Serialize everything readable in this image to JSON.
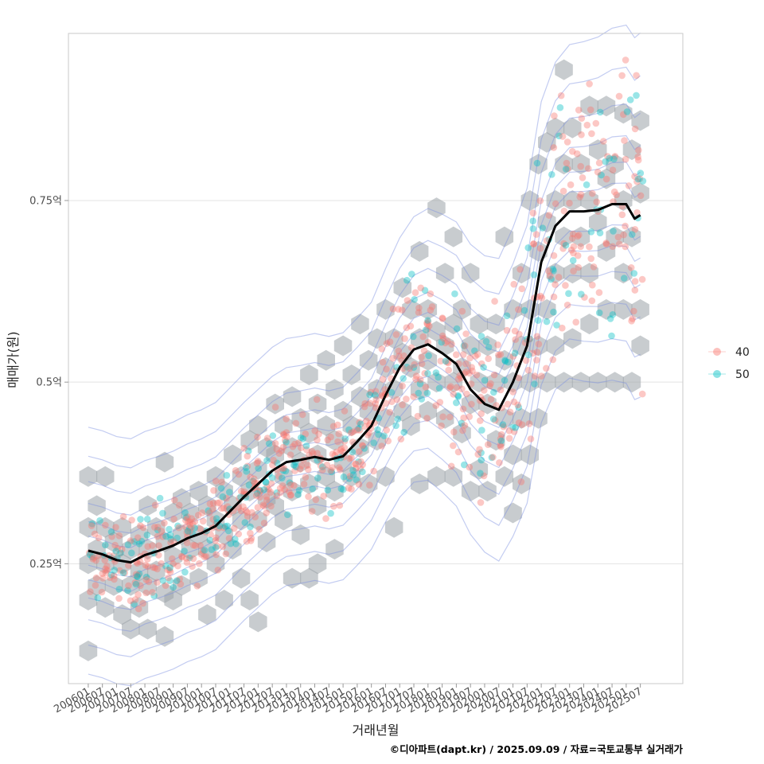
{
  "chart_data": {
    "type": "scatter",
    "xlabel": "거래년월",
    "ylabel": "매매가(원)",
    "credit": "©디아파트(dapt.kr) / 2025.09.09 / 자료=국토교통부 실거래가",
    "x_ticks": [
      "200601",
      "200607",
      "200701",
      "200707",
      "200801",
      "200807",
      "200901",
      "200907",
      "201001",
      "201007",
      "201101",
      "201107",
      "201201",
      "201207",
      "201301",
      "201307",
      "201401",
      "201407",
      "201501",
      "201507",
      "201601",
      "201607",
      "201701",
      "201707",
      "201801",
      "201807",
      "201901",
      "201907",
      "202001",
      "202007",
      "202101",
      "202107",
      "202201",
      "202207",
      "202301",
      "202307",
      "202401",
      "202407",
      "202501",
      "202507"
    ],
    "y_ticks": [
      {
        "value": 0.25,
        "label": "0.25억"
      },
      {
        "value": 0.5,
        "label": "0.5억"
      },
      {
        "value": 0.75,
        "label": "0.75억"
      }
    ],
    "xlim": [
      2005.3,
      2027.0
    ],
    "ylim": [
      0.085,
      0.98
    ],
    "grid": true,
    "legend_position": "right",
    "series": [
      {
        "name": "40",
        "color": "#f8766d"
      },
      {
        "name": "50",
        "color": "#00bfc4"
      }
    ],
    "trend": {
      "color": "#000000",
      "x": [
        2006.0,
        2006.5,
        2007.0,
        2007.5,
        2008.0,
        2008.5,
        2009.0,
        2009.5,
        2010.0,
        2010.5,
        2011.0,
        2011.5,
        2012.0,
        2012.5,
        2013.0,
        2013.5,
        2014.0,
        2014.5,
        2015.0,
        2015.5,
        2016.0,
        2016.5,
        2017.0,
        2017.5,
        2018.0,
        2018.5,
        2019.0,
        2019.5,
        2020.0,
        2020.5,
        2021.0,
        2021.5,
        2022.0,
        2022.5,
        2023.0,
        2023.5,
        2024.0,
        2024.5,
        2025.0,
        2025.3,
        2025.5
      ],
      "y": [
        0.268,
        0.263,
        0.255,
        0.252,
        0.262,
        0.268,
        0.275,
        0.285,
        0.292,
        0.302,
        0.322,
        0.342,
        0.36,
        0.378,
        0.39,
        0.393,
        0.397,
        0.393,
        0.398,
        0.418,
        0.44,
        0.482,
        0.52,
        0.545,
        0.552,
        0.54,
        0.525,
        0.49,
        0.47,
        0.462,
        0.5,
        0.55,
        0.665,
        0.715,
        0.735,
        0.735,
        0.737,
        0.745,
        0.745,
        0.725,
        0.73
      ]
    },
    "hex_centers": [
      [
        2006.0,
        0.37
      ],
      [
        2006.0,
        0.3
      ],
      [
        2006.0,
        0.25
      ],
      [
        2006.0,
        0.2
      ],
      [
        2006.0,
        0.13
      ],
      [
        2006.3,
        0.33
      ],
      [
        2006.3,
        0.27
      ],
      [
        2006.3,
        0.22
      ],
      [
        2006.6,
        0.37
      ],
      [
        2006.6,
        0.3
      ],
      [
        2006.6,
        0.25
      ],
      [
        2006.6,
        0.19
      ],
      [
        2006.9,
        0.28
      ],
      [
        2006.9,
        0.22
      ],
      [
        2007.2,
        0.3
      ],
      [
        2007.2,
        0.25
      ],
      [
        2007.2,
        0.18
      ],
      [
        2007.5,
        0.27
      ],
      [
        2007.5,
        0.22
      ],
      [
        2007.5,
        0.16
      ],
      [
        2007.8,
        0.29
      ],
      [
        2007.8,
        0.24
      ],
      [
        2007.8,
        0.19
      ],
      [
        2008.1,
        0.33
      ],
      [
        2008.1,
        0.27
      ],
      [
        2008.1,
        0.22
      ],
      [
        2008.1,
        0.16
      ],
      [
        2008.4,
        0.3
      ],
      [
        2008.4,
        0.24
      ],
      [
        2008.7,
        0.39
      ],
      [
        2008.7,
        0.28
      ],
      [
        2008.7,
        0.21
      ],
      [
        2008.7,
        0.15
      ],
      [
        2009.0,
        0.32
      ],
      [
        2009.0,
        0.26
      ],
      [
        2009.0,
        0.2
      ],
      [
        2009.3,
        0.34
      ],
      [
        2009.3,
        0.29
      ],
      [
        2009.3,
        0.22
      ],
      [
        2009.6,
        0.32
      ],
      [
        2009.6,
        0.27
      ],
      [
        2009.9,
        0.35
      ],
      [
        2009.9,
        0.29
      ],
      [
        2009.9,
        0.23
      ],
      [
        2010.2,
        0.33
      ],
      [
        2010.2,
        0.27
      ],
      [
        2010.2,
        0.18
      ],
      [
        2010.5,
        0.37
      ],
      [
        2010.5,
        0.31
      ],
      [
        2010.5,
        0.25
      ],
      [
        2010.8,
        0.35
      ],
      [
        2010.8,
        0.29
      ],
      [
        2010.8,
        0.2
      ],
      [
        2011.1,
        0.4
      ],
      [
        2011.1,
        0.33
      ],
      [
        2011.1,
        0.27
      ],
      [
        2011.4,
        0.37
      ],
      [
        2011.4,
        0.31
      ],
      [
        2011.4,
        0.23
      ],
      [
        2011.7,
        0.42
      ],
      [
        2011.7,
        0.35
      ],
      [
        2011.7,
        0.2
      ],
      [
        2012.0,
        0.44
      ],
      [
        2012.0,
        0.38
      ],
      [
        2012.0,
        0.31
      ],
      [
        2012.0,
        0.17
      ],
      [
        2012.3,
        0.41
      ],
      [
        2012.3,
        0.34
      ],
      [
        2012.3,
        0.28
      ],
      [
        2012.6,
        0.47
      ],
      [
        2012.6,
        0.4
      ],
      [
        2012.6,
        0.33
      ],
      [
        2012.9,
        0.44
      ],
      [
        2012.9,
        0.37
      ],
      [
        2012.9,
        0.31
      ],
      [
        2013.2,
        0.48
      ],
      [
        2013.2,
        0.41
      ],
      [
        2013.2,
        0.35
      ],
      [
        2013.2,
        0.23
      ],
      [
        2013.5,
        0.45
      ],
      [
        2013.5,
        0.39
      ],
      [
        2013.5,
        0.29
      ],
      [
        2013.8,
        0.51
      ],
      [
        2013.8,
        0.43
      ],
      [
        2013.8,
        0.36
      ],
      [
        2013.8,
        0.23
      ],
      [
        2014.1,
        0.47
      ],
      [
        2014.1,
        0.4
      ],
      [
        2014.1,
        0.33
      ],
      [
        2014.1,
        0.25
      ],
      [
        2014.4,
        0.53
      ],
      [
        2014.4,
        0.44
      ],
      [
        2014.4,
        0.37
      ],
      [
        2014.7,
        0.49
      ],
      [
        2014.7,
        0.42
      ],
      [
        2014.7,
        0.35
      ],
      [
        2014.7,
        0.27
      ],
      [
        2015.0,
        0.55
      ],
      [
        2015.0,
        0.46
      ],
      [
        2015.0,
        0.39
      ],
      [
        2015.3,
        0.51
      ],
      [
        2015.3,
        0.44
      ],
      [
        2015.3,
        0.37
      ],
      [
        2015.6,
        0.58
      ],
      [
        2015.6,
        0.48
      ],
      [
        2015.6,
        0.41
      ],
      [
        2015.9,
        0.53
      ],
      [
        2015.9,
        0.46
      ],
      [
        2015.9,
        0.36
      ],
      [
        2016.2,
        0.56
      ],
      [
        2016.2,
        0.49
      ],
      [
        2016.2,
        0.42
      ],
      [
        2016.5,
        0.6
      ],
      [
        2016.5,
        0.52
      ],
      [
        2016.5,
        0.45
      ],
      [
        2016.5,
        0.37
      ],
      [
        2016.8,
        0.56
      ],
      [
        2016.8,
        0.49
      ],
      [
        2016.8,
        0.3
      ],
      [
        2017.1,
        0.63
      ],
      [
        2017.1,
        0.54
      ],
      [
        2017.1,
        0.46
      ],
      [
        2017.4,
        0.6
      ],
      [
        2017.4,
        0.52
      ],
      [
        2017.4,
        0.44
      ],
      [
        2017.7,
        0.68
      ],
      [
        2017.7,
        0.56
      ],
      [
        2017.7,
        0.49
      ],
      [
        2017.7,
        0.36
      ],
      [
        2018.0,
        0.6
      ],
      [
        2018.0,
        0.53
      ],
      [
        2018.0,
        0.46
      ],
      [
        2018.3,
        0.74
      ],
      [
        2018.3,
        0.57
      ],
      [
        2018.3,
        0.5
      ],
      [
        2018.3,
        0.37
      ],
      [
        2018.6,
        0.65
      ],
      [
        2018.6,
        0.55
      ],
      [
        2018.6,
        0.45
      ],
      [
        2018.9,
        0.7
      ],
      [
        2018.9,
        0.58
      ],
      [
        2018.9,
        0.5
      ],
      [
        2018.9,
        0.37
      ],
      [
        2019.2,
        0.6
      ],
      [
        2019.2,
        0.52
      ],
      [
        2019.2,
        0.43
      ],
      [
        2019.5,
        0.65
      ],
      [
        2019.5,
        0.55
      ],
      [
        2019.5,
        0.47
      ],
      [
        2019.5,
        0.35
      ],
      [
        2019.8,
        0.58
      ],
      [
        2019.8,
        0.5
      ],
      [
        2019.8,
        0.38
      ],
      [
        2020.1,
        0.55
      ],
      [
        2020.1,
        0.47
      ],
      [
        2020.1,
        0.35
      ],
      [
        2020.4,
        0.58
      ],
      [
        2020.4,
        0.5
      ],
      [
        2020.4,
        0.42
      ],
      [
        2020.7,
        0.7
      ],
      [
        2020.7,
        0.53
      ],
      [
        2020.7,
        0.45
      ],
      [
        2020.7,
        0.37
      ],
      [
        2021.0,
        0.6
      ],
      [
        2021.0,
        0.5
      ],
      [
        2021.0,
        0.4
      ],
      [
        2021.0,
        0.32
      ],
      [
        2021.3,
        0.65
      ],
      [
        2021.3,
        0.55
      ],
      [
        2021.3,
        0.45
      ],
      [
        2021.3,
        0.36
      ],
      [
        2021.6,
        0.75
      ],
      [
        2021.6,
        0.6
      ],
      [
        2021.6,
        0.5
      ],
      [
        2021.6,
        0.4
      ],
      [
        2021.9,
        0.8
      ],
      [
        2021.9,
        0.68
      ],
      [
        2021.9,
        0.55
      ],
      [
        2021.9,
        0.45
      ],
      [
        2022.2,
        0.83
      ],
      [
        2022.2,
        0.72
      ],
      [
        2022.2,
        0.6
      ],
      [
        2022.2,
        0.5
      ],
      [
        2022.5,
        0.85
      ],
      [
        2022.5,
        0.75
      ],
      [
        2022.5,
        0.65
      ],
      [
        2022.5,
        0.55
      ],
      [
        2022.8,
        0.93
      ],
      [
        2022.8,
        0.8
      ],
      [
        2022.8,
        0.7
      ],
      [
        2022.8,
        0.5
      ],
      [
        2023.1,
        0.85
      ],
      [
        2023.1,
        0.75
      ],
      [
        2023.1,
        0.65
      ],
      [
        2023.1,
        0.56
      ],
      [
        2023.4,
        0.8
      ],
      [
        2023.4,
        0.7
      ],
      [
        2023.4,
        0.5
      ],
      [
        2023.7,
        0.88
      ],
      [
        2023.7,
        0.75
      ],
      [
        2023.7,
        0.65
      ],
      [
        2023.7,
        0.58
      ],
      [
        2024.0,
        0.82
      ],
      [
        2024.0,
        0.72
      ],
      [
        2024.0,
        0.5
      ],
      [
        2024.3,
        0.88
      ],
      [
        2024.3,
        0.78
      ],
      [
        2024.3,
        0.68
      ],
      [
        2024.3,
        0.6
      ],
      [
        2024.6,
        0.8
      ],
      [
        2024.6,
        0.7
      ],
      [
        2024.6,
        0.5
      ],
      [
        2024.9,
        0.87
      ],
      [
        2024.9,
        0.75
      ],
      [
        2024.9,
        0.65
      ],
      [
        2024.9,
        0.6
      ],
      [
        2025.2,
        0.82
      ],
      [
        2025.2,
        0.7
      ],
      [
        2025.2,
        0.5
      ],
      [
        2025.5,
        0.86
      ],
      [
        2025.5,
        0.76
      ],
      [
        2025.5,
        0.6
      ],
      [
        2025.5,
        0.55
      ]
    ]
  }
}
